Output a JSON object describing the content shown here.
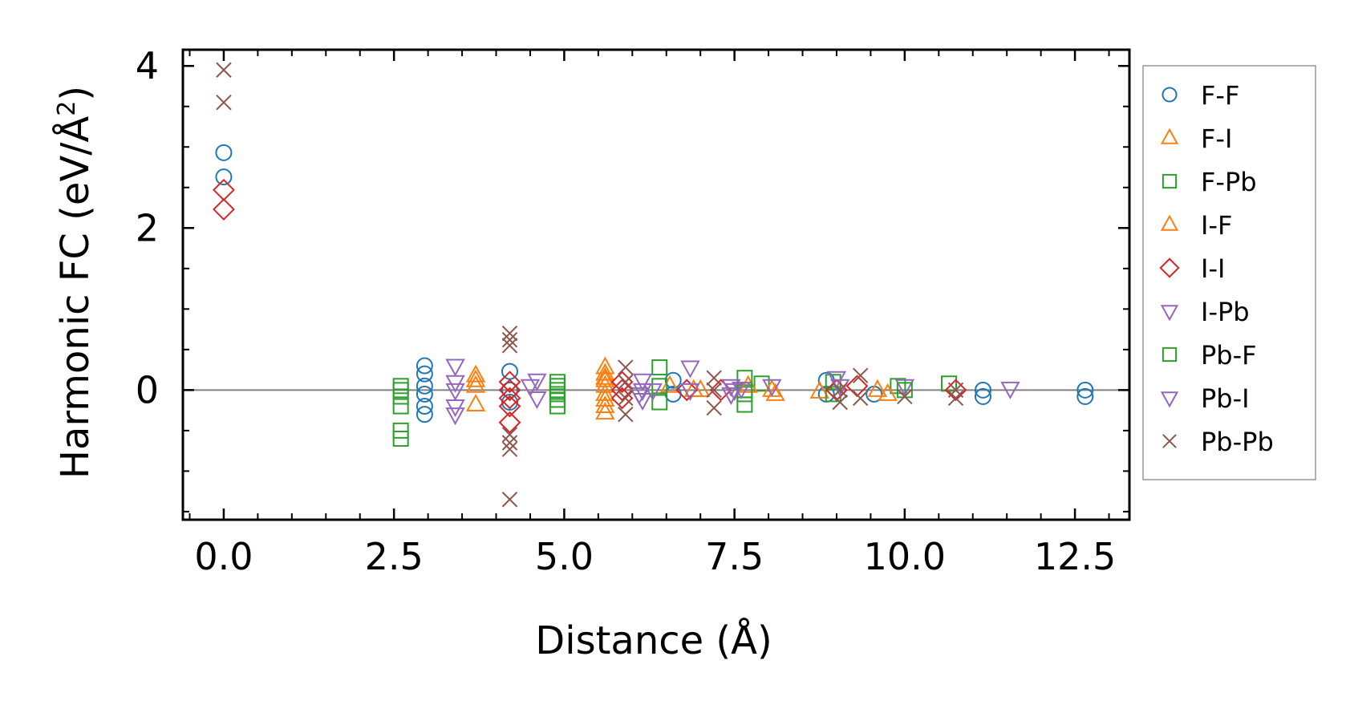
{
  "chart_data": {
    "type": "scatter",
    "title": "",
    "xlabel": "Distance (Å)",
    "ylabel_main": "Harmonic FC (eV/Å",
    "ylabel_sup": "2",
    "ylabel_close": ")",
    "xlim": [
      -0.6,
      13.3
    ],
    "ylim": [
      -1.6,
      4.2
    ],
    "xticks": [
      0.0,
      2.5,
      5.0,
      7.5,
      10.0,
      12.5
    ],
    "xtick_labels": [
      "0.0",
      "2.5",
      "5.0",
      "7.5",
      "10.0",
      "12.5"
    ],
    "yticks": [
      0,
      2,
      4
    ],
    "ytick_labels": [
      "0",
      "2",
      "4"
    ],
    "x_minor_step": 0.5,
    "y_minor_step": 0.5,
    "zero_line": 0,
    "legend_position": "right, outside plot",
    "series": [
      {
        "name": "F-F",
        "marker": "circle",
        "color": "#1f77b4",
        "x": [
          0,
          0,
          2.95,
          2.95,
          2.95,
          2.95,
          2.95,
          2.95,
          4.2,
          4.2,
          4.2,
          6.6,
          6.6,
          8.85,
          8.85,
          9.55,
          11.15,
          11.15,
          12.65,
          12.65
        ],
        "y": [
          2.93,
          2.63,
          0.3,
          0.2,
          0.05,
          -0.05,
          -0.2,
          -0.3,
          0.23,
          0.0,
          -0.15,
          0.12,
          -0.05,
          0.12,
          -0.05,
          -0.05,
          0.0,
          -0.08,
          0.0,
          -0.08
        ]
      },
      {
        "name": "F-I",
        "marker": "triangle-up",
        "color": "#ff7f0e",
        "x": [
          3.7,
          3.7,
          3.7,
          5.6,
          5.6,
          5.6,
          5.6,
          5.6,
          5.6,
          5.6,
          5.6,
          6.55,
          6.9,
          8.1,
          8.75,
          9.6
        ],
        "y": [
          0.18,
          0.05,
          -0.18,
          0.28,
          0.2,
          0.12,
          0.05,
          -0.05,
          -0.12,
          -0.2,
          -0.28,
          0.05,
          0.0,
          -0.05,
          -0.02,
          0.0
        ]
      },
      {
        "name": "F-Pb",
        "marker": "square",
        "color": "#2ca02c",
        "x": [
          2.6,
          2.6,
          2.6,
          2.6,
          2.6,
          2.6,
          4.9,
          4.9,
          4.9,
          4.9,
          4.9,
          6.4,
          6.4,
          7.65,
          7.65,
          7.65,
          7.9,
          8.95,
          8.95,
          9.9,
          10.65
        ],
        "y": [
          0.05,
          -0.08,
          -0.2,
          -0.5,
          -0.6,
          0.0,
          0.1,
          0.05,
          -0.05,
          -0.12,
          -0.2,
          0.28,
          -0.15,
          0.15,
          -0.05,
          -0.18,
          0.08,
          0.1,
          -0.05,
          0.05,
          0.08
        ]
      },
      {
        "name": "I-F",
        "marker": "triangle-up",
        "color": "#ff7f0e",
        "x": [
          3.7,
          5.6,
          7.0,
          7.7,
          8.05,
          9.75
        ],
        "y": [
          0.12,
          0.15,
          0.0,
          0.05,
          0.0,
          -0.05
        ]
      },
      {
        "name": "I-I",
        "marker": "diamond",
        "color": "#d62728",
        "x": [
          0,
          0,
          4.2,
          4.2,
          4.2,
          4.2,
          4.2,
          5.85,
          5.85,
          5.85,
          6.8,
          7.3,
          9.0,
          9.3,
          10.75
        ],
        "y": [
          2.47,
          2.23,
          0.1,
          0.0,
          -0.1,
          -0.2,
          -0.4,
          0.1,
          0.0,
          -0.1,
          0.0,
          0.0,
          0.0,
          0.05,
          0.0
        ]
      },
      {
        "name": "I-Pb",
        "marker": "triangle-down",
        "color": "#9467bd",
        "x": [
          3.4,
          3.4,
          3.4,
          3.4,
          4.6,
          4.6,
          6.15,
          6.15,
          6.15,
          6.85,
          6.85,
          7.45,
          7.45,
          8.05,
          9.0,
          10.0
        ],
        "y": [
          0.3,
          0.1,
          -0.2,
          -0.3,
          0.12,
          -0.1,
          0.12,
          0.0,
          -0.12,
          0.28,
          0.0,
          0.05,
          -0.05,
          0.05,
          0.15,
          0.05
        ]
      },
      {
        "name": "Pb-F",
        "marker": "square",
        "color": "#2ca02c",
        "x": [
          4.9,
          6.4,
          7.65,
          10.0
        ],
        "y": [
          0.0,
          0.05,
          0.0,
          0.0
        ]
      },
      {
        "name": "Pb-I",
        "marker": "triangle-down",
        "color": "#9467bd",
        "x": [
          3.4,
          4.5,
          6.1,
          6.3,
          7.5,
          7.6,
          9.05,
          11.55
        ],
        "y": [
          0.0,
          0.05,
          -0.05,
          0.0,
          0.0,
          0.02,
          0.05,
          0.02
        ]
      },
      {
        "name": "Pb-Pb",
        "marker": "x",
        "color": "#8c564b",
        "x": [
          0,
          0,
          4.2,
          4.2,
          4.2,
          4.2,
          4.2,
          4.2,
          4.2,
          5.9,
          5.9,
          5.9,
          5.9,
          7.2,
          7.2,
          7.2,
          9.05,
          9.05,
          9.35,
          9.35,
          10.0,
          10.75,
          10.75
        ],
        "y": [
          3.95,
          3.55,
          0.7,
          0.62,
          0.55,
          -0.55,
          -0.65,
          -0.73,
          -1.35,
          0.28,
          0.1,
          -0.1,
          -0.3,
          0.15,
          0.0,
          -0.22,
          0.0,
          -0.15,
          0.18,
          -0.1,
          -0.08,
          0.0,
          -0.1
        ]
      }
    ]
  }
}
